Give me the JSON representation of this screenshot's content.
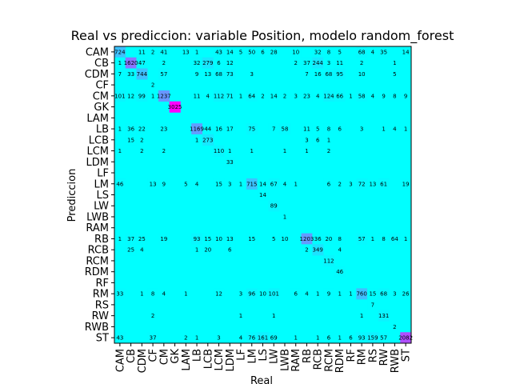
{
  "chart_data": {
    "type": "heatmap",
    "title": "Real vs prediccion: variable Position, modelo random_forest",
    "xlabel": "Real",
    "ylabel": "Prediccion",
    "labels": [
      "CAM",
      "CB",
      "CDM",
      "CF",
      "CM",
      "GK",
      "LAM",
      "LB",
      "LCB",
      "LCM",
      "LDM",
      "LF",
      "LM",
      "LS",
      "LW",
      "LWB",
      "RAM",
      "RB",
      "RCB",
      "RCM",
      "RDM",
      "RF",
      "RM",
      "RS",
      "RW",
      "RWB",
      "ST"
    ],
    "colormap": {
      "low": "#00ffff",
      "high": "#ff00ff"
    },
    "vmax": 3025,
    "cells": [
      [
        "CAM",
        "CAM",
        724
      ],
      [
        "CAM",
        "CF",
        2
      ],
      [
        "CAM",
        "CDM",
        11
      ],
      [
        "CAM",
        "CM",
        41
      ],
      [
        "CAM",
        "LAM",
        13
      ],
      [
        "CAM",
        "LB",
        1
      ],
      [
        "CAM",
        "LCM",
        43
      ],
      [
        "CAM",
        "LDM",
        14
      ],
      [
        "CAM",
        "LF",
        5
      ],
      [
        "CAM",
        "LM",
        50
      ],
      [
        "CAM",
        "LS",
        6
      ],
      [
        "CAM",
        "LW",
        28
      ],
      [
        "CAM",
        "RAM",
        10
      ],
      [
        "CAM",
        "RCB",
        32
      ],
      [
        "CAM",
        "RCM",
        8
      ],
      [
        "CAM",
        "RDM",
        5
      ],
      [
        "CAM",
        "RM",
        68
      ],
      [
        "CAM",
        "RS",
        4
      ],
      [
        "CAM",
        "RW",
        35
      ],
      [
        "CAM",
        "ST",
        14
      ],
      [
        "CB",
        "CAM",
        1
      ],
      [
        "CB",
        "CB",
        1620
      ],
      [
        "CB",
        "CDM",
        47
      ],
      [
        "CB",
        "CM",
        2
      ],
      [
        "CB",
        "LB",
        32
      ],
      [
        "CB",
        "LCB",
        279
      ],
      [
        "CB",
        "LCM",
        6
      ],
      [
        "CB",
        "LDM",
        12
      ],
      [
        "CB",
        "RAM",
        2
      ],
      [
        "CB",
        "RB",
        37
      ],
      [
        "CB",
        "RCB",
        244
      ],
      [
        "CB",
        "RCM",
        3
      ],
      [
        "CB",
        "RDM",
        11
      ],
      [
        "CB",
        "RM",
        2
      ],
      [
        "CB",
        "RWB",
        1
      ],
      [
        "CDM",
        "CAM",
        7
      ],
      [
        "CDM",
        "CB",
        33
      ],
      [
        "CDM",
        "CDM",
        744
      ],
      [
        "CDM",
        "CM",
        57
      ],
      [
        "CDM",
        "LB",
        9
      ],
      [
        "CDM",
        "LCB",
        13
      ],
      [
        "CDM",
        "LCM",
        68
      ],
      [
        "CDM",
        "LDM",
        73
      ],
      [
        "CDM",
        "LM",
        3
      ],
      [
        "CDM",
        "RB",
        7
      ],
      [
        "CDM",
        "RCB",
        16
      ],
      [
        "CDM",
        "RCM",
        68
      ],
      [
        "CDM",
        "RDM",
        95
      ],
      [
        "CDM",
        "RM",
        10
      ],
      [
        "CDM",
        "RWB",
        5
      ],
      [
        "CF",
        "CF",
        2
      ],
      [
        "CM",
        "CAM",
        101
      ],
      [
        "CM",
        "CB",
        12
      ],
      [
        "CM",
        "CDM",
        99
      ],
      [
        "CM",
        "CF",
        1
      ],
      [
        "CM",
        "CM",
        1237
      ],
      [
        "CM",
        "LB",
        11
      ],
      [
        "CM",
        "LCB",
        4
      ],
      [
        "CM",
        "LCM",
        112
      ],
      [
        "CM",
        "LDM",
        71
      ],
      [
        "CM",
        "LF",
        1
      ],
      [
        "CM",
        "LM",
        64
      ],
      [
        "CM",
        "LS",
        2
      ],
      [
        "CM",
        "LW",
        14
      ],
      [
        "CM",
        "LWB",
        2
      ],
      [
        "CM",
        "RAM",
        3
      ],
      [
        "CM",
        "RB",
        23
      ],
      [
        "CM",
        "RCB",
        4
      ],
      [
        "CM",
        "RCM",
        124
      ],
      [
        "CM",
        "RDM",
        66
      ],
      [
        "CM",
        "RF",
        1
      ],
      [
        "CM",
        "RM",
        58
      ],
      [
        "CM",
        "RS",
        4
      ],
      [
        "CM",
        "RW",
        9
      ],
      [
        "CM",
        "RWB",
        8
      ],
      [
        "CM",
        "ST",
        9
      ],
      [
        "GK",
        "GK",
        3025
      ],
      [
        "LB",
        "CAM",
        1
      ],
      [
        "LB",
        "CB",
        36
      ],
      [
        "LB",
        "CDM",
        22
      ],
      [
        "LB",
        "CM",
        23
      ],
      [
        "LB",
        "LB",
        1169
      ],
      [
        "LB",
        "LCB",
        44
      ],
      [
        "LB",
        "LCM",
        16
      ],
      [
        "LB",
        "LDM",
        17
      ],
      [
        "LB",
        "LM",
        75
      ],
      [
        "LB",
        "LW",
        7
      ],
      [
        "LB",
        "LWB",
        58
      ],
      [
        "LB",
        "RB",
        11
      ],
      [
        "LB",
        "RCB",
        5
      ],
      [
        "LB",
        "RCM",
        8
      ],
      [
        "LB",
        "RDM",
        6
      ],
      [
        "LB",
        "RM",
        3
      ],
      [
        "LB",
        "RW",
        1
      ],
      [
        "LB",
        "RWB",
        4
      ],
      [
        "LB",
        "ST",
        1
      ],
      [
        "LCB",
        "CB",
        15
      ],
      [
        "LCB",
        "CDM",
        2
      ],
      [
        "LCB",
        "LB",
        1
      ],
      [
        "LCB",
        "LCB",
        273
      ],
      [
        "LCB",
        "RB",
        3
      ],
      [
        "LCB",
        "RCB",
        6
      ],
      [
        "LCB",
        "RCM",
        1
      ],
      [
        "LCM",
        "CAM",
        1
      ],
      [
        "LCM",
        "CDM",
        2
      ],
      [
        "LCM",
        "CM",
        2
      ],
      [
        "LCM",
        "LCM",
        110
      ],
      [
        "LCM",
        "LDM",
        1
      ],
      [
        "LCM",
        "LM",
        1
      ],
      [
        "LCM",
        "LWB",
        1
      ],
      [
        "LCM",
        "RB",
        1
      ],
      [
        "LCM",
        "RCM",
        2
      ],
      [
        "LDM",
        "LDM",
        33
      ],
      [
        "LM",
        "CAM",
        46
      ],
      [
        "LM",
        "CF",
        13
      ],
      [
        "LM",
        "CM",
        9
      ],
      [
        "LM",
        "LAM",
        5
      ],
      [
        "LM",
        "LB",
        4
      ],
      [
        "LM",
        "LCM",
        15
      ],
      [
        "LM",
        "LDM",
        3
      ],
      [
        "LM",
        "LF",
        1
      ],
      [
        "LM",
        "LM",
        715
      ],
      [
        "LM",
        "LS",
        14
      ],
      [
        "LM",
        "LW",
        67
      ],
      [
        "LM",
        "LWB",
        4
      ],
      [
        "LM",
        "RAM",
        1
      ],
      [
        "LM",
        "RCM",
        6
      ],
      [
        "LM",
        "RDM",
        2
      ],
      [
        "LM",
        "RF",
        3
      ],
      [
        "LM",
        "RM",
        72
      ],
      [
        "LM",
        "RS",
        13
      ],
      [
        "LM",
        "RW",
        61
      ],
      [
        "LM",
        "ST",
        19
      ],
      [
        "LS",
        "LS",
        14
      ],
      [
        "LW",
        "LW",
        89
      ],
      [
        "LWB",
        "LWB",
        1
      ],
      [
        "RB",
        "CAM",
        1
      ],
      [
        "RB",
        "CB",
        37
      ],
      [
        "RB",
        "CDM",
        25
      ],
      [
        "RB",
        "CM",
        19
      ],
      [
        "RB",
        "LB",
        93
      ],
      [
        "RB",
        "LCB",
        15
      ],
      [
        "RB",
        "LCM",
        10
      ],
      [
        "RB",
        "LDM",
        13
      ],
      [
        "RB",
        "LM",
        15
      ],
      [
        "RB",
        "LW",
        5
      ],
      [
        "RB",
        "LWB",
        10
      ],
      [
        "RB",
        "RB",
        1203
      ],
      [
        "RB",
        "RCB",
        36
      ],
      [
        "RB",
        "RCM",
        20
      ],
      [
        "RB",
        "RDM",
        8
      ],
      [
        "RB",
        "RM",
        57
      ],
      [
        "RB",
        "RS",
        1
      ],
      [
        "RB",
        "RW",
        8
      ],
      [
        "RB",
        "RWB",
        64
      ],
      [
        "RB",
        "ST",
        1
      ],
      [
        "RCB",
        "CB",
        25
      ],
      [
        "RCB",
        "CDM",
        4
      ],
      [
        "RCB",
        "LB",
        1
      ],
      [
        "RCB",
        "LCB",
        20
      ],
      [
        "RCB",
        "LDM",
        6
      ],
      [
        "RCB",
        "RB",
        2
      ],
      [
        "RCB",
        "RCB",
        349
      ],
      [
        "RCB",
        "RDM",
        4
      ],
      [
        "RCM",
        "RCM",
        112
      ],
      [
        "RDM",
        "RDM",
        46
      ],
      [
        "RM",
        "CAM",
        33
      ],
      [
        "RM",
        "CDM",
        1
      ],
      [
        "RM",
        "CF",
        8
      ],
      [
        "RM",
        "CM",
        4
      ],
      [
        "RM",
        "LAM",
        1
      ],
      [
        "RM",
        "LCM",
        12
      ],
      [
        "RM",
        "LF",
        3
      ],
      [
        "RM",
        "LM",
        96
      ],
      [
        "RM",
        "LS",
        10
      ],
      [
        "RM",
        "LW",
        101
      ],
      [
        "RM",
        "RAM",
        6
      ],
      [
        "RM",
        "RB",
        4
      ],
      [
        "RM",
        "RCB",
        1
      ],
      [
        "RM",
        "RCM",
        9
      ],
      [
        "RM",
        "RDM",
        1
      ],
      [
        "RM",
        "RF",
        1
      ],
      [
        "RM",
        "RM",
        760
      ],
      [
        "RM",
        "RS",
        15
      ],
      [
        "RM",
        "RW",
        68
      ],
      [
        "RM",
        "RWB",
        3
      ],
      [
        "RM",
        "ST",
        26
      ],
      [
        "RS",
        "RS",
        7
      ],
      [
        "RW",
        "CF",
        2
      ],
      [
        "RW",
        "LF",
        1
      ],
      [
        "RW",
        "LW",
        1
      ],
      [
        "RW",
        "RM",
        1
      ],
      [
        "RW",
        "RW",
        131
      ],
      [
        "RWB",
        "RWB",
        2
      ],
      [
        "ST",
        "CAM",
        43
      ],
      [
        "ST",
        "CF",
        37
      ],
      [
        "ST",
        "LAM",
        2
      ],
      [
        "ST",
        "LB",
        1
      ],
      [
        "ST",
        "LCM",
        3
      ],
      [
        "ST",
        "LF",
        4
      ],
      [
        "ST",
        "LM",
        76
      ],
      [
        "ST",
        "LS",
        161
      ],
      [
        "ST",
        "LW",
        69
      ],
      [
        "ST",
        "RAM",
        1
      ],
      [
        "ST",
        "RCB",
        1
      ],
      [
        "ST",
        "RCM",
        6
      ],
      [
        "ST",
        "RDM",
        1
      ],
      [
        "ST",
        "RF",
        6
      ],
      [
        "ST",
        "RM",
        93
      ],
      [
        "ST",
        "RS",
        159
      ],
      [
        "ST",
        "RW",
        57
      ],
      [
        "ST",
        "ST",
        2082
      ]
    ]
  }
}
